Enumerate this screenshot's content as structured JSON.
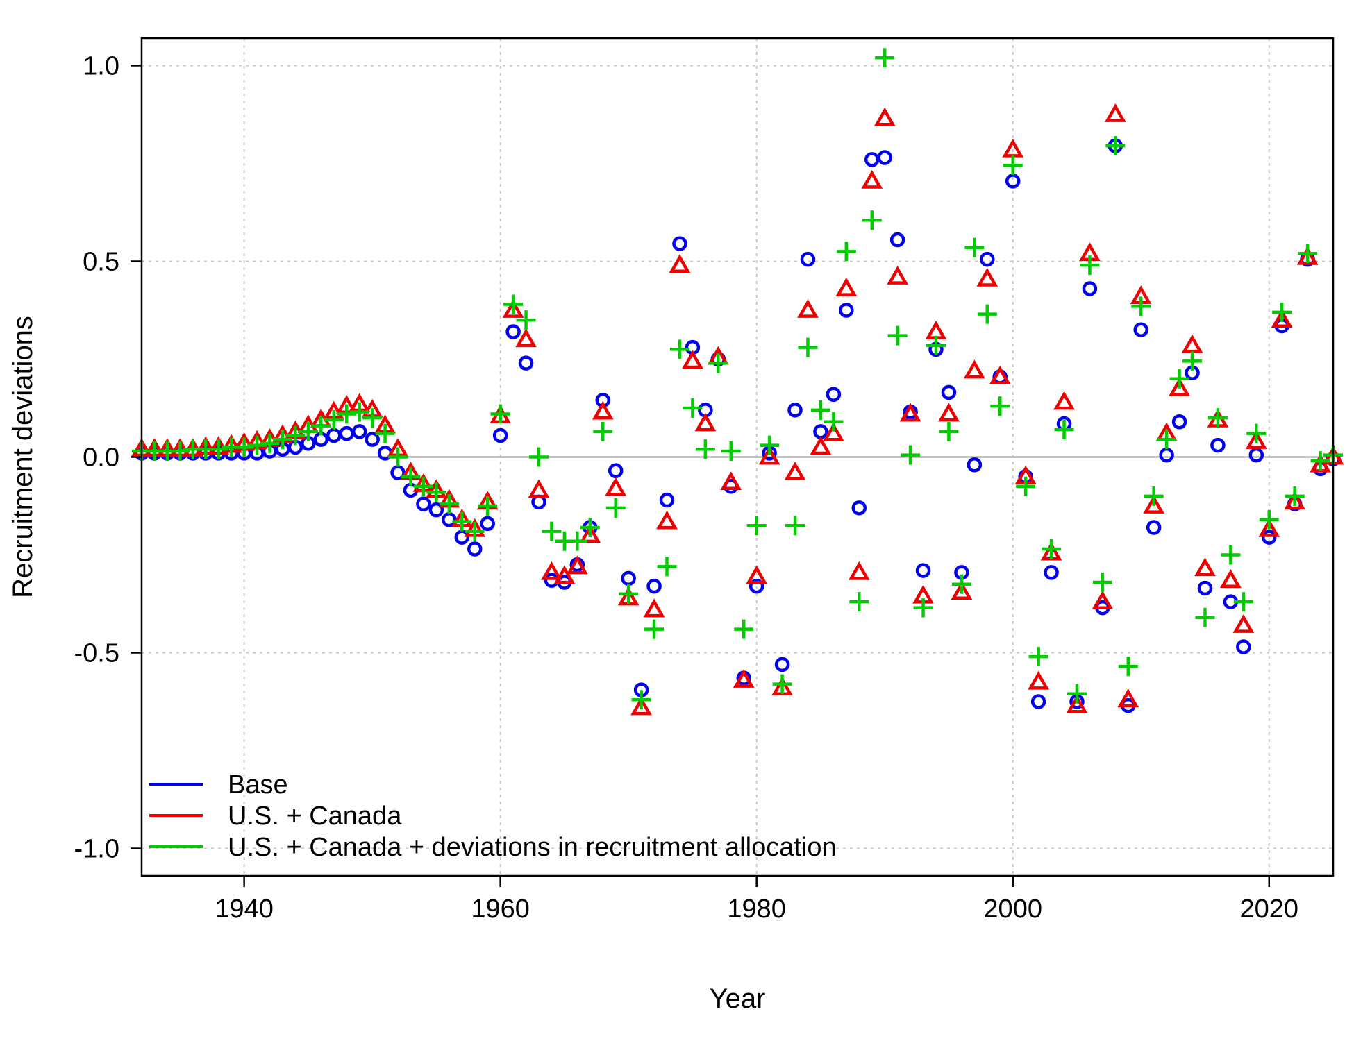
{
  "chart_data": {
    "type": "scatter",
    "title": "",
    "xlabel": "Year",
    "ylabel": "Recruitment deviations",
    "xlim": [
      1932,
      2025
    ],
    "ylim": [
      -1.07,
      1.07
    ],
    "x_ticks": [
      1940,
      1960,
      1980,
      2000,
      2020
    ],
    "y_ticks": [
      -1.0,
      -0.5,
      0.0,
      0.5,
      1.0
    ],
    "y_tick_labels": [
      "-1.0",
      "-0.5",
      "0.0",
      "0.5",
      "1.0"
    ],
    "grid": true,
    "reference_line": 0.0,
    "legend_position": "bottom-left",
    "series": [
      {
        "name": "Base",
        "color": "#0000ee",
        "marker": "circle",
        "points": [
          [
            1932,
            0.01
          ],
          [
            1933,
            0.01
          ],
          [
            1934,
            0.01
          ],
          [
            1935,
            0.01
          ],
          [
            1936,
            0.01
          ],
          [
            1937,
            0.01
          ],
          [
            1938,
            0.01
          ],
          [
            1939,
            0.01
          ],
          [
            1940,
            0.01
          ],
          [
            1941,
            0.01
          ],
          [
            1942,
            0.015
          ],
          [
            1943,
            0.02
          ],
          [
            1944,
            0.025
          ],
          [
            1945,
            0.035
          ],
          [
            1946,
            0.045
          ],
          [
            1947,
            0.055
          ],
          [
            1948,
            0.06
          ],
          [
            1949,
            0.065
          ],
          [
            1950,
            0.045
          ],
          [
            1951,
            0.01
          ],
          [
            1952,
            -0.04
          ],
          [
            1953,
            -0.085
          ],
          [
            1954,
            -0.12
          ],
          [
            1955,
            -0.135
          ],
          [
            1956,
            -0.16
          ],
          [
            1957,
            -0.205
          ],
          [
            1958,
            -0.235
          ],
          [
            1959,
            -0.17
          ],
          [
            1960,
            0.055
          ],
          [
            1961,
            0.32
          ],
          [
            1962,
            0.24
          ],
          [
            1963,
            -0.115
          ],
          [
            1964,
            -0.315
          ],
          [
            1965,
            -0.32
          ],
          [
            1966,
            -0.275
          ],
          [
            1967,
            -0.18
          ],
          [
            1968,
            0.145
          ],
          [
            1969,
            -0.035
          ],
          [
            1970,
            -0.31
          ],
          [
            1971,
            -0.595
          ],
          [
            1972,
            -0.33
          ],
          [
            1973,
            -0.11
          ],
          [
            1974,
            0.545
          ],
          [
            1975,
            0.28
          ],
          [
            1976,
            0.12
          ],
          [
            1977,
            0.25
          ],
          [
            1978,
            -0.075
          ],
          [
            1979,
            -0.565
          ],
          [
            1980,
            -0.33
          ],
          [
            1981,
            0.01
          ],
          [
            1982,
            -0.53
          ],
          [
            1983,
            0.12
          ],
          [
            1984,
            0.505
          ],
          [
            1985,
            0.065
          ],
          [
            1986,
            0.16
          ],
          [
            1987,
            0.375
          ],
          [
            1988,
            -0.13
          ],
          [
            1989,
            0.76
          ],
          [
            1990,
            0.765
          ],
          [
            1991,
            0.555
          ],
          [
            1992,
            0.115
          ],
          [
            1993,
            -0.29
          ],
          [
            1994,
            0.275
          ],
          [
            1995,
            0.165
          ],
          [
            1996,
            -0.295
          ],
          [
            1997,
            -0.02
          ],
          [
            1998,
            0.505
          ],
          [
            1999,
            0.205
          ],
          [
            2000,
            0.705
          ],
          [
            2001,
            -0.05
          ],
          [
            2002,
            -0.625
          ],
          [
            2003,
            -0.295
          ],
          [
            2004,
            0.085
          ],
          [
            2005,
            -0.625
          ],
          [
            2006,
            0.43
          ],
          [
            2007,
            -0.385
          ],
          [
            2008,
            0.795
          ],
          [
            2009,
            -0.635
          ],
          [
            2010,
            0.325
          ],
          [
            2011,
            -0.18
          ],
          [
            2012,
            0.005
          ],
          [
            2013,
            0.09
          ],
          [
            2014,
            0.215
          ],
          [
            2015,
            -0.335
          ],
          [
            2016,
            0.03
          ],
          [
            2017,
            -0.37
          ],
          [
            2018,
            -0.485
          ],
          [
            2019,
            0.005
          ],
          [
            2020,
            -0.205
          ],
          [
            2021,
            0.335
          ],
          [
            2022,
            -0.12
          ],
          [
            2023,
            0.505
          ],
          [
            2024,
            -0.03
          ],
          [
            2025,
            -0.005
          ]
        ]
      },
      {
        "name": "U.S. + Canada",
        "color": "#ee0000",
        "marker": "triangle",
        "points": [
          [
            1932,
            0.02
          ],
          [
            1933,
            0.02
          ],
          [
            1934,
            0.02
          ],
          [
            1935,
            0.02
          ],
          [
            1936,
            0.02
          ],
          [
            1937,
            0.025
          ],
          [
            1938,
            0.025
          ],
          [
            1939,
            0.03
          ],
          [
            1940,
            0.035
          ],
          [
            1941,
            0.04
          ],
          [
            1942,
            0.045
          ],
          [
            1943,
            0.055
          ],
          [
            1944,
            0.065
          ],
          [
            1945,
            0.08
          ],
          [
            1946,
            0.095
          ],
          [
            1947,
            0.115
          ],
          [
            1948,
            0.13
          ],
          [
            1949,
            0.135
          ],
          [
            1950,
            0.12
          ],
          [
            1951,
            0.08
          ],
          [
            1952,
            0.02
          ],
          [
            1953,
            -0.04
          ],
          [
            1954,
            -0.07
          ],
          [
            1955,
            -0.085
          ],
          [
            1956,
            -0.11
          ],
          [
            1957,
            -0.16
          ],
          [
            1958,
            -0.185
          ],
          [
            1959,
            -0.115
          ],
          [
            1960,
            0.105
          ],
          [
            1961,
            0.375
          ],
          [
            1962,
            0.3
          ],
          [
            1963,
            -0.085
          ],
          [
            1964,
            -0.295
          ],
          [
            1965,
            -0.305
          ],
          [
            1966,
            -0.28
          ],
          [
            1967,
            -0.2
          ],
          [
            1968,
            0.115
          ],
          [
            1969,
            -0.08
          ],
          [
            1970,
            -0.36
          ],
          [
            1971,
            -0.64
          ],
          [
            1972,
            -0.39
          ],
          [
            1973,
            -0.165
          ],
          [
            1974,
            0.49
          ],
          [
            1975,
            0.245
          ],
          [
            1976,
            0.085
          ],
          [
            1977,
            0.255
          ],
          [
            1978,
            -0.065
          ],
          [
            1979,
            -0.57
          ],
          [
            1980,
            -0.305
          ],
          [
            1981,
            0.0
          ],
          [
            1982,
            -0.59
          ],
          [
            1983,
            -0.04
          ],
          [
            1984,
            0.375
          ],
          [
            1985,
            0.025
          ],
          [
            1986,
            0.06
          ],
          [
            1987,
            0.43
          ],
          [
            1988,
            -0.295
          ],
          [
            1989,
            0.705
          ],
          [
            1990,
            0.865
          ],
          [
            1991,
            0.46
          ],
          [
            1992,
            0.11
          ],
          [
            1993,
            -0.355
          ],
          [
            1994,
            0.32
          ],
          [
            1995,
            0.11
          ],
          [
            1996,
            -0.345
          ],
          [
            1997,
            0.22
          ],
          [
            1998,
            0.455
          ],
          [
            1999,
            0.205
          ],
          [
            2000,
            0.785
          ],
          [
            2001,
            -0.05
          ],
          [
            2002,
            -0.575
          ],
          [
            2003,
            -0.245
          ],
          [
            2004,
            0.14
          ],
          [
            2005,
            -0.635
          ],
          [
            2006,
            0.52
          ],
          [
            2007,
            -0.37
          ],
          [
            2008,
            0.875
          ],
          [
            2009,
            -0.62
          ],
          [
            2010,
            0.41
          ],
          [
            2011,
            -0.125
          ],
          [
            2012,
            0.06
          ],
          [
            2013,
            0.175
          ],
          [
            2014,
            0.285
          ],
          [
            2015,
            -0.285
          ],
          [
            2016,
            0.095
          ],
          [
            2017,
            -0.315
          ],
          [
            2018,
            -0.43
          ],
          [
            2019,
            0.04
          ],
          [
            2020,
            -0.185
          ],
          [
            2021,
            0.35
          ],
          [
            2022,
            -0.115
          ],
          [
            2023,
            0.51
          ],
          [
            2024,
            -0.02
          ],
          [
            2025,
            0.0
          ]
        ]
      },
      {
        "name": "U.S. + Canada + deviations in recruitment allocation",
        "color": "#00cc00",
        "marker": "plus",
        "points": [
          [
            1932,
            0.015
          ],
          [
            1933,
            0.015
          ],
          [
            1934,
            0.015
          ],
          [
            1935,
            0.015
          ],
          [
            1936,
            0.02
          ],
          [
            1937,
            0.02
          ],
          [
            1938,
            0.02
          ],
          [
            1939,
            0.025
          ],
          [
            1940,
            0.025
          ],
          [
            1941,
            0.03
          ],
          [
            1942,
            0.035
          ],
          [
            1943,
            0.045
          ],
          [
            1944,
            0.055
          ],
          [
            1945,
            0.065
          ],
          [
            1946,
            0.08
          ],
          [
            1947,
            0.095
          ],
          [
            1948,
            0.11
          ],
          [
            1949,
            0.115
          ],
          [
            1950,
            0.1
          ],
          [
            1951,
            0.06
          ],
          [
            1952,
            0.0
          ],
          [
            1953,
            -0.05
          ],
          [
            1954,
            -0.075
          ],
          [
            1955,
            -0.09
          ],
          [
            1956,
            -0.12
          ],
          [
            1957,
            -0.165
          ],
          [
            1958,
            -0.19
          ],
          [
            1959,
            -0.125
          ],
          [
            1960,
            0.11
          ],
          [
            1961,
            0.39
          ],
          [
            1962,
            0.35
          ],
          [
            1963,
            0.0
          ],
          [
            1964,
            -0.19
          ],
          [
            1965,
            -0.215
          ],
          [
            1966,
            -0.215
          ],
          [
            1967,
            -0.18
          ],
          [
            1968,
            0.065
          ],
          [
            1969,
            -0.13
          ],
          [
            1970,
            -0.35
          ],
          [
            1971,
            -0.62
          ],
          [
            1972,
            -0.44
          ],
          [
            1973,
            -0.28
          ],
          [
            1974,
            0.275
          ],
          [
            1975,
            0.125
          ],
          [
            1976,
            0.02
          ],
          [
            1977,
            0.24
          ],
          [
            1978,
            0.015
          ],
          [
            1979,
            -0.44
          ],
          [
            1980,
            -0.175
          ],
          [
            1981,
            0.03
          ],
          [
            1982,
            -0.58
          ],
          [
            1983,
            -0.175
          ],
          [
            1984,
            0.28
          ],
          [
            1985,
            0.12
          ],
          [
            1986,
            0.09
          ],
          [
            1987,
            0.525
          ],
          [
            1988,
            -0.37
          ],
          [
            1989,
            0.605
          ],
          [
            1990,
            1.02
          ],
          [
            1991,
            0.31
          ],
          [
            1992,
            0.005
          ],
          [
            1993,
            -0.385
          ],
          [
            1994,
            0.285
          ],
          [
            1995,
            0.065
          ],
          [
            1996,
            -0.325
          ],
          [
            1997,
            0.535
          ],
          [
            1998,
            0.365
          ],
          [
            1999,
            0.13
          ],
          [
            2000,
            0.745
          ],
          [
            2001,
            -0.075
          ],
          [
            2002,
            -0.51
          ],
          [
            2003,
            -0.235
          ],
          [
            2004,
            0.07
          ],
          [
            2005,
            -0.605
          ],
          [
            2006,
            0.49
          ],
          [
            2007,
            -0.32
          ],
          [
            2008,
            0.795
          ],
          [
            2009,
            -0.535
          ],
          [
            2010,
            0.385
          ],
          [
            2011,
            -0.1
          ],
          [
            2012,
            0.045
          ],
          [
            2013,
            0.2
          ],
          [
            2014,
            0.245
          ],
          [
            2015,
            -0.41
          ],
          [
            2016,
            0.1
          ],
          [
            2017,
            -0.25
          ],
          [
            2018,
            -0.37
          ],
          [
            2019,
            0.06
          ],
          [
            2020,
            -0.16
          ],
          [
            2021,
            0.37
          ],
          [
            2022,
            -0.1
          ],
          [
            2023,
            0.52
          ],
          [
            2024,
            -0.01
          ],
          [
            2025,
            0.005
          ]
        ]
      }
    ]
  }
}
